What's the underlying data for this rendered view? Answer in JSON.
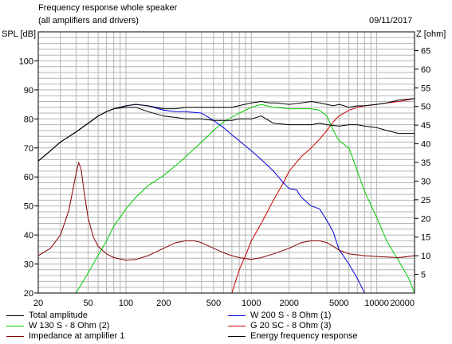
{
  "header": {
    "title": "Frequency response whole speaker",
    "subtitle": "(all amplifiers and drivers)",
    "date": "09/11/2017"
  },
  "chart_data": {
    "type": "line",
    "title": "Frequency response whole speaker",
    "subtitle": "(all amplifiers and drivers)",
    "xlabel": "",
    "ylabel": "SPL [dB]",
    "y2label": "Z [ohm]",
    "xscale": "log",
    "xlim": [
      20,
      20000
    ],
    "ylim": [
      20,
      110
    ],
    "y2lim": [
      0,
      70
    ],
    "grid": true,
    "legend_position": "bottom",
    "xticks": [
      20,
      50,
      100,
      200,
      500,
      1000,
      2000,
      5000,
      10000,
      20000
    ],
    "xtick_labels": [
      "20",
      "50",
      "100",
      "200",
      "500",
      "1000",
      "2000",
      "5000",
      "10000",
      "20000"
    ],
    "yticks": [
      20,
      30,
      40,
      50,
      60,
      70,
      80,
      90,
      100
    ],
    "y2ticks": [
      5,
      10,
      15,
      20,
      25,
      30,
      35,
      40,
      45,
      50,
      55,
      60,
      65
    ],
    "series": [
      {
        "name": "Total amplitude",
        "axis": "left",
        "color": "#000000",
        "x": [
          20,
          25,
          30,
          40,
          50,
          60,
          70,
          80,
          100,
          120,
          150,
          200,
          250,
          300,
          400,
          500,
          700,
          1000,
          1200,
          1400,
          1600,
          2000,
          2500,
          3000,
          3500,
          4000,
          4500,
          5000,
          5500,
          6000,
          7000,
          8000,
          10000,
          12000,
          15000,
          20000
        ],
        "y": [
          65.5,
          69,
          72,
          75.5,
          78.5,
          81,
          82.5,
          83.5,
          84.5,
          85,
          84.5,
          83.5,
          83.5,
          84,
          84,
          84,
          84,
          85.5,
          86,
          85.5,
          85.5,
          85,
          85.5,
          86,
          85.5,
          85,
          84.5,
          85,
          84.5,
          84,
          84.5,
          84.5,
          85,
          85.5,
          86.5,
          87
        ]
      },
      {
        "name": "W 200 S - 8 Ohm (1)",
        "axis": "left",
        "color": "#0000dd",
        "x": [
          20,
          25,
          30,
          40,
          50,
          60,
          70,
          80,
          100,
          120,
          150,
          200,
          250,
          300,
          400,
          500,
          600,
          700,
          800,
          1000,
          1200,
          1500,
          1800,
          2000,
          2300,
          2500,
          3000,
          3500,
          4000,
          4500,
          5000,
          6000,
          7000,
          8000,
          9000,
          10000,
          20000
        ],
        "y": [
          65.5,
          69,
          72,
          75.5,
          78.5,
          81,
          82.5,
          83.5,
          84.5,
          85,
          84.5,
          83,
          82.5,
          82.5,
          82,
          79.5,
          77,
          74.5,
          72.5,
          69,
          66,
          62,
          58,
          56,
          55.5,
          53,
          50,
          49,
          45,
          41,
          35,
          30,
          25,
          20,
          20,
          20,
          20
        ]
      },
      {
        "name": "W 130 S - 8 Ohm (2)",
        "axis": "left",
        "color": "#00cc00",
        "x": [
          20,
          40,
          50,
          60,
          70,
          80,
          100,
          120,
          150,
          200,
          250,
          300,
          400,
          500,
          600,
          800,
          1000,
          1200,
          1500,
          2000,
          2500,
          3000,
          3500,
          4000,
          4500,
          5000,
          6000,
          7000,
          8000,
          10000,
          12000,
          15000,
          18000,
          20000
        ],
        "y": [
          20,
          20,
          27,
          33,
          38,
          43,
          49,
          53,
          57,
          60.5,
          64,
          67,
          72,
          76,
          79,
          82,
          84,
          85,
          84,
          83.5,
          83.5,
          83.5,
          83,
          81,
          76,
          72.5,
          70,
          62,
          55,
          46,
          38,
          31,
          25,
          20
        ]
      },
      {
        "name": "G 20 SC - 8 Ohm (3)",
        "axis": "left",
        "color": "#cc0000",
        "x": [
          20,
          700,
          800,
          900,
          1000,
          1200,
          1500,
          1800,
          2000,
          2500,
          3000,
          3500,
          4000,
          4500,
          5000,
          6000,
          7000,
          8000,
          10000,
          12000,
          15000,
          20000
        ],
        "y": [
          20,
          20,
          28,
          33,
          38,
          44,
          52,
          58,
          62,
          67,
          70,
          73,
          76,
          79,
          81,
          83,
          84,
          84.5,
          85,
          85.5,
          86,
          87
        ]
      },
      {
        "name": "Impedance at amplifier 1",
        "axis": "right",
        "color": "#880000",
        "x": [
          20,
          25,
          30,
          35,
          40,
          42,
          44,
          46,
          50,
          55,
          60,
          70,
          80,
          100,
          120,
          150,
          200,
          250,
          300,
          350,
          400,
          500,
          600,
          700,
          800,
          1000,
          1200,
          1500,
          2000,
          2500,
          3000,
          3500,
          4000,
          4500,
          5000,
          6000,
          8000,
          10000,
          15000,
          20000
        ],
        "y": [
          10,
          12,
          15.5,
          22,
          32,
          35,
          33,
          28,
          20,
          15,
          12.5,
          10.5,
          9.5,
          8.8,
          9,
          10,
          12,
          13.5,
          14,
          14,
          13.5,
          12,
          10.8,
          10,
          9.5,
          9,
          9.5,
          10.5,
          12,
          13.5,
          14,
          14,
          13.5,
          12.5,
          11.5,
          10.5,
          10,
          9.8,
          9.5,
          10
        ]
      },
      {
        "name": "Energy frequency response",
        "axis": "left",
        "color": "#000000",
        "x": [
          20,
          25,
          30,
          40,
          50,
          60,
          70,
          80,
          100,
          120,
          150,
          200,
          250,
          300,
          400,
          500,
          700,
          800,
          1000,
          1200,
          1500,
          2000,
          2500,
          3000,
          3500,
          4000,
          5000,
          6000,
          7000,
          8000,
          10000,
          12000,
          15000,
          20000
        ],
        "y": [
          65.5,
          69,
          72,
          75.5,
          78.5,
          81,
          82.5,
          83.5,
          84,
          84,
          82.5,
          81,
          80.5,
          80,
          80,
          79.5,
          79.5,
          80,
          80,
          81,
          78.5,
          78,
          78,
          78,
          78.5,
          78,
          77.5,
          78,
          78,
          77.5,
          77,
          76,
          75,
          75
        ]
      }
    ]
  }
}
